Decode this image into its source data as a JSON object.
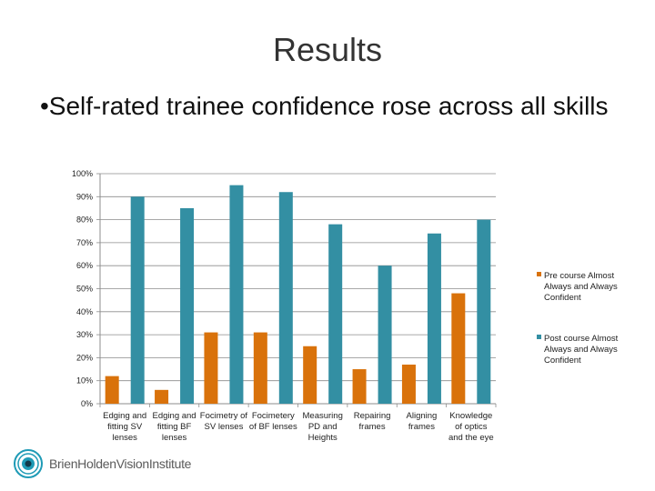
{
  "slide": {
    "title": "Results",
    "bullet": "•Self-rated trainee confidence rose across all skills"
  },
  "logo": {
    "text": "BrienHoldenVisionInstitute"
  },
  "colors": {
    "pre": "#d9720b",
    "post": "#338fa3",
    "axis": "#8c8c8c",
    "grid": "#8c8c8c"
  },
  "chart_data": {
    "type": "bar",
    "categories": [
      [
        "Edging and",
        "fitting SV",
        "lenses"
      ],
      [
        "Edging and",
        "fitting BF",
        "lenses"
      ],
      [
        "Focimetry of",
        "SV lenses"
      ],
      [
        "Focimetery",
        "of BF lenses"
      ],
      [
        "Measuring",
        "PD and",
        "Heights"
      ],
      [
        "Repairing",
        "frames"
      ],
      [
        "Aligning",
        "frames"
      ],
      [
        "Knowledge",
        "of optics",
        "and the eye"
      ]
    ],
    "series": [
      {
        "name": "Pre course Almost Always and Always Confident",
        "legend_lines": [
          "Pre course Almost",
          "Always and Always",
          "Confident"
        ],
        "values": [
          12,
          6,
          31,
          31,
          25,
          15,
          17,
          48
        ]
      },
      {
        "name": "Post course Almost Always and Always Confident",
        "legend_lines": [
          "Post course Almost",
          "Always and Always",
          "Confident"
        ],
        "values": [
          90,
          85,
          95,
          92,
          78,
          60,
          74,
          80
        ]
      }
    ],
    "yticks": [
      "0%",
      "10%",
      "20%",
      "30%",
      "40%",
      "50%",
      "60%",
      "70%",
      "80%",
      "90%",
      "100%"
    ],
    "ylim": [
      0,
      100
    ],
    "grid": true,
    "legend_position": "right",
    "title": "",
    "xlabel": "",
    "ylabel": ""
  }
}
